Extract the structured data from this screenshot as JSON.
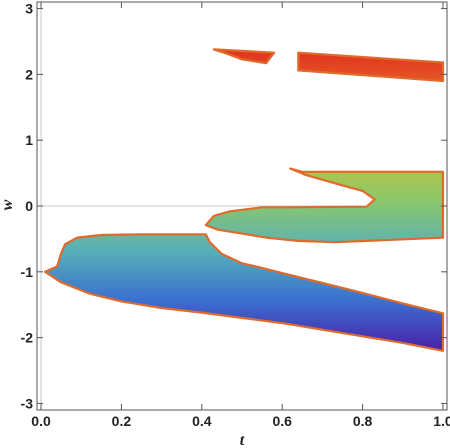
{
  "chart_data": {
    "type": "area",
    "title": "",
    "xlabel": "t",
    "ylabel": "w",
    "xlim": [
      -0.01,
      1.01
    ],
    "ylim": [
      -3.1,
      3.1
    ],
    "xticks": [
      {
        "value": 0.0,
        "label": "0.0"
      },
      {
        "value": 0.2,
        "label": "0.2"
      },
      {
        "value": 0.4,
        "label": "0.4"
      },
      {
        "value": 0.6,
        "label": "0.6"
      },
      {
        "value": 0.8,
        "label": "0.8"
      },
      {
        "value": 1.0,
        "label": "1.0"
      }
    ],
    "yticks": [
      {
        "value": 3,
        "label": "3"
      },
      {
        "value": 2,
        "label": "2"
      },
      {
        "value": 1,
        "label": "1"
      },
      {
        "value": 0,
        "label": "0"
      },
      {
        "value": -1,
        "label": "-1"
      },
      {
        "value": -2,
        "label": "-2"
      },
      {
        "value": -3,
        "label": "-3"
      }
    ],
    "grid": false,
    "zero_lines": true,
    "outline_color": "#e06a2c",
    "fill_gradient": {
      "w_min": -2.2,
      "w_max": 2.4,
      "stops": [
        "#4a1fa8",
        "#3a70d0",
        "#58b0b8",
        "#8cc868",
        "#c8c038",
        "#e86a28",
        "#e0301e"
      ]
    },
    "regions": [
      {
        "id": "upper-left-strip",
        "points": [
          [
            0.43,
            2.38
          ],
          [
            0.58,
            2.33
          ],
          [
            0.56,
            2.17
          ],
          [
            0.5,
            2.23
          ],
          [
            0.46,
            2.32
          ],
          [
            0.43,
            2.38
          ]
        ]
      },
      {
        "id": "upper-right-strip",
        "points": [
          [
            0.64,
            2.33
          ],
          [
            1.0,
            2.18
          ],
          [
            1.0,
            1.9
          ],
          [
            0.64,
            2.06
          ],
          [
            0.64,
            2.33
          ]
        ]
      },
      {
        "id": "middle-region",
        "points": [
          [
            0.62,
            0.57
          ],
          [
            0.66,
            0.47
          ],
          [
            0.74,
            0.33
          ],
          [
            0.8,
            0.23
          ],
          [
            0.83,
            0.1
          ],
          [
            0.81,
            -0.01
          ],
          [
            0.6,
            -0.02
          ],
          [
            0.55,
            -0.02
          ],
          [
            0.47,
            -0.08
          ],
          [
            0.43,
            -0.15
          ],
          [
            0.41,
            -0.29
          ],
          [
            0.44,
            -0.36
          ],
          [
            0.5,
            -0.42
          ],
          [
            0.56,
            -0.48
          ],
          [
            0.64,
            -0.53
          ],
          [
            0.73,
            -0.55
          ],
          [
            0.85,
            -0.52
          ],
          [
            1.0,
            -0.48
          ],
          [
            1.0,
            0.52
          ],
          [
            0.65,
            0.52
          ],
          [
            0.62,
            0.57
          ]
        ]
      },
      {
        "id": "lower-region",
        "points": [
          [
            0.01,
            -1.0
          ],
          [
            0.04,
            -0.92
          ],
          [
            0.05,
            -0.72
          ],
          [
            0.06,
            -0.58
          ],
          [
            0.09,
            -0.48
          ],
          [
            0.15,
            -0.44
          ],
          [
            0.25,
            -0.43
          ],
          [
            0.41,
            -0.43
          ],
          [
            0.42,
            -0.55
          ],
          [
            0.45,
            -0.73
          ],
          [
            0.5,
            -0.87
          ],
          [
            0.55,
            -0.94
          ],
          [
            0.6,
            -1.02
          ],
          [
            0.7,
            -1.17
          ],
          [
            0.8,
            -1.32
          ],
          [
            0.9,
            -1.48
          ],
          [
            1.0,
            -1.63
          ],
          [
            1.0,
            -1.88
          ],
          [
            1.0,
            -2.2
          ],
          [
            0.9,
            -2.08
          ],
          [
            0.8,
            -1.98
          ],
          [
            0.6,
            -1.78
          ],
          [
            0.5,
            -1.7
          ],
          [
            0.4,
            -1.62
          ],
          [
            0.3,
            -1.55
          ],
          [
            0.2,
            -1.45
          ],
          [
            0.12,
            -1.33
          ],
          [
            0.05,
            -1.16
          ],
          [
            0.01,
            -1.0
          ]
        ]
      }
    ]
  }
}
